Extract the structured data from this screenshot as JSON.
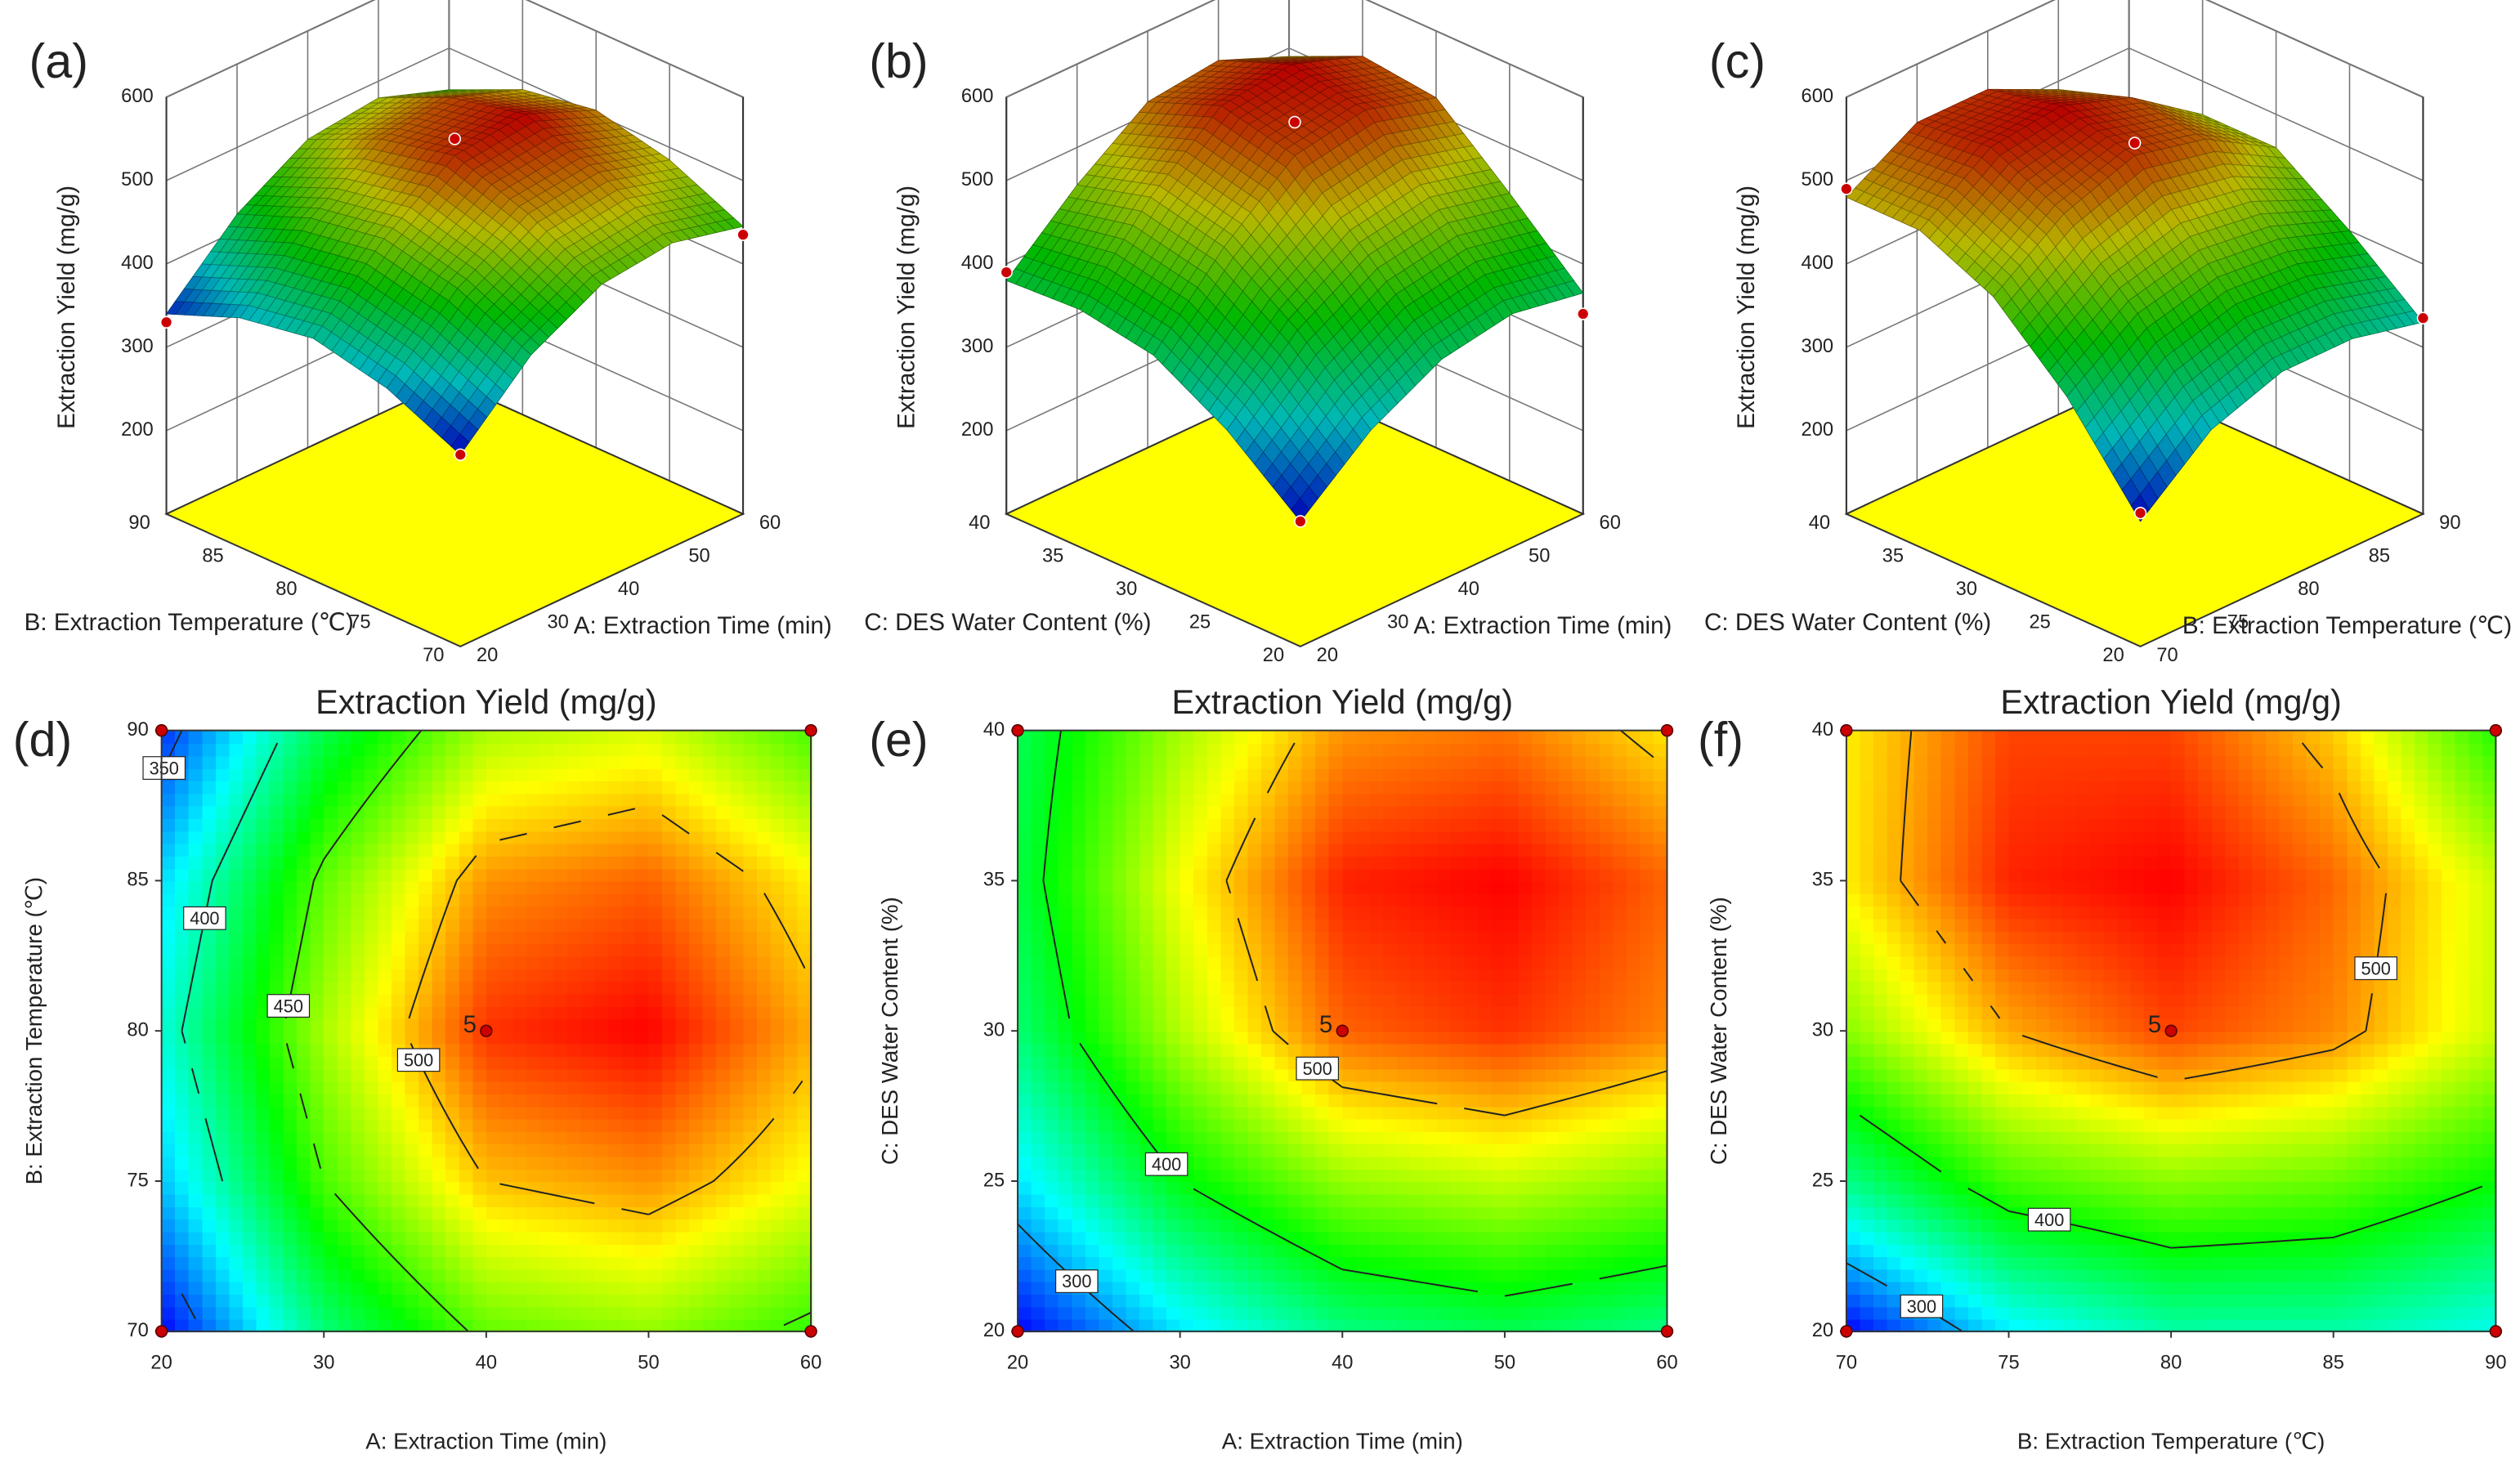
{
  "colorscale": [
    "#0000ff",
    "#00ffff",
    "#00ff00",
    "#ffff00",
    "#ff0000"
  ],
  "floor_color": "#ffff00",
  "point_color": "#cc0000",
  "chart_data": [
    {
      "type": "surface3d",
      "panel": "(a)",
      "xlabel": "A: Extraction Time (min)",
      "ylabel": "B: Extraction Temperature (℃)",
      "zlabel": "Extraction Yield (mg/g)",
      "xlim": [
        20,
        60
      ],
      "ylim": [
        70,
        90
      ],
      "zlim": [
        100,
        600
      ],
      "xticks": [
        20,
        30,
        40,
        50,
        60
      ],
      "yticks": [
        70,
        75,
        80,
        85,
        90
      ],
      "zticks": [
        200,
        300,
        400,
        500,
        600
      ],
      "z": [
        [
          330,
          410,
          455,
          465,
          445
        ],
        [
          370,
          450,
          500,
          510,
          485
        ],
        [
          390,
          470,
          530,
          540,
          505
        ],
        [
          375,
          455,
          510,
          520,
          490
        ],
        [
          340,
          420,
          470,
          480,
          450
        ]
      ],
      "points": {
        "x": [
          20,
          20,
          60,
          40
        ],
        "y": [
          70,
          90,
          70,
          80
        ],
        "z": [
          330,
          330,
          435,
          550
        ]
      }
    },
    {
      "type": "surface3d",
      "panel": "(b)",
      "xlabel": "A: Extraction Time (min)",
      "ylabel": "C: DES Water Content (%)",
      "zlabel": "Extraction Yield (mg/g)",
      "xlim": [
        20,
        60
      ],
      "ylim": [
        20,
        40
      ],
      "zlim": [
        100,
        600
      ],
      "xticks": [
        20,
        30,
        40,
        50,
        60
      ],
      "yticks": [
        20,
        25,
        30,
        35,
        40
      ],
      "zticks": [
        200,
        300,
        400,
        500,
        600
      ],
      "z": [
        [
          250,
          320,
          365,
          380,
          365
        ],
        [
          320,
          400,
          450,
          465,
          445
        ],
        [
          370,
          460,
          530,
          545,
          520
        ],
        [
          385,
          480,
          550,
          560,
          530
        ],
        [
          380,
          455,
          515,
          525,
          490
        ]
      ],
      "points": {
        "x": [
          20,
          20,
          60,
          40
        ],
        "y": [
          20,
          40,
          20,
          30
        ],
        "z": [
          250,
          390,
          340,
          570
        ]
      }
    },
    {
      "type": "surface3d",
      "panel": "(c)",
      "xlabel": "B: Extraction Temperature (℃)",
      "ylabel": "C: DES Water Content (%)",
      "zlabel": "Extraction Yield (mg/g)",
      "xlim": [
        70,
        90
      ],
      "ylim": [
        20,
        40
      ],
      "zlim": [
        100,
        600
      ],
      "xticks": [
        70,
        75,
        80,
        85,
        90
      ],
      "yticks": [
        20,
        25,
        30,
        35,
        40
      ],
      "zticks": [
        200,
        300,
        400,
        500,
        600
      ],
      "z": [
        [
          250,
          320,
          350,
          350,
          330
        ],
        [
          360,
          420,
          440,
          430,
          400
        ],
        [
          440,
          500,
          530,
          510,
          460
        ],
        [
          480,
          540,
          550,
          520,
          460
        ],
        [
          480,
          530,
          530,
          490,
          410
        ]
      ],
      "points": {
        "x": [
          70,
          70,
          90,
          80
        ],
        "y": [
          20,
          40,
          20,
          30
        ],
        "z": [
          260,
          490,
          335,
          545
        ]
      }
    },
    {
      "type": "contour",
      "panel": "(d)",
      "title": "Extraction Yield (mg/g)",
      "xlabel": "A: Extraction Time (min)",
      "ylabel": "B: Extraction Temperature (℃)",
      "xlim": [
        20,
        60
      ],
      "ylim": [
        70,
        90
      ],
      "xticks": [
        20,
        30,
        40,
        50,
        60
      ],
      "yticks": [
        70,
        75,
        80,
        85,
        90
      ],
      "z": [
        [
          330,
          410,
          455,
          465,
          445
        ],
        [
          370,
          450,
          500,
          510,
          485
        ],
        [
          390,
          470,
          530,
          540,
          505
        ],
        [
          375,
          455,
          510,
          520,
          490
        ],
        [
          340,
          420,
          470,
          480,
          450
        ]
      ],
      "levels": [
        350,
        400,
        450,
        500
      ],
      "points": {
        "x": [
          20,
          20,
          60,
          60,
          40
        ],
        "y": [
          70,
          90,
          70,
          90,
          80
        ],
        "labels": [
          null,
          null,
          null,
          null,
          "5"
        ]
      }
    },
    {
      "type": "contour",
      "panel": "(e)",
      "title": "Extraction Yield (mg/g)",
      "xlabel": "A: Extraction Time (min)",
      "ylabel": "C: DES Water Content (%)",
      "xlim": [
        20,
        60
      ],
      "ylim": [
        20,
        40
      ],
      "xticks": [
        20,
        30,
        40,
        50,
        60
      ],
      "yticks": [
        20,
        25,
        30,
        35,
        40
      ],
      "z": [
        [
          250,
          320,
          365,
          380,
          365
        ],
        [
          320,
          400,
          450,
          465,
          445
        ],
        [
          370,
          460,
          530,
          545,
          520
        ],
        [
          385,
          480,
          550,
          560,
          530
        ],
        [
          380,
          455,
          515,
          525,
          490
        ]
      ],
      "levels": [
        300,
        400,
        500
      ],
      "points": {
        "x": [
          20,
          20,
          60,
          60,
          40
        ],
        "y": [
          20,
          40,
          20,
          40,
          30
        ],
        "labels": [
          null,
          null,
          null,
          null,
          "5"
        ]
      }
    },
    {
      "type": "contour",
      "panel": "(f)",
      "title": "Extraction Yield (mg/g)",
      "xlabel": "B: Extraction Temperature (℃)",
      "ylabel": "C: DES Water Content (%)",
      "xlim": [
        70,
        90
      ],
      "ylim": [
        20,
        40
      ],
      "xticks": [
        70,
        75,
        80,
        85,
        90
      ],
      "yticks": [
        20,
        25,
        30,
        35,
        40
      ],
      "z": [
        [
          250,
          320,
          350,
          350,
          330
        ],
        [
          360,
          420,
          440,
          430,
          400
        ],
        [
          440,
          500,
          530,
          510,
          460
        ],
        [
          480,
          540,
          550,
          520,
          460
        ],
        [
          480,
          530,
          530,
          490,
          410
        ]
      ],
      "levels": [
        300,
        400,
        500
      ],
      "points": {
        "x": [
          70,
          70,
          90,
          90,
          80
        ],
        "y": [
          20,
          40,
          20,
          40,
          30
        ],
        "labels": [
          null,
          null,
          null,
          null,
          "5"
        ]
      }
    }
  ]
}
